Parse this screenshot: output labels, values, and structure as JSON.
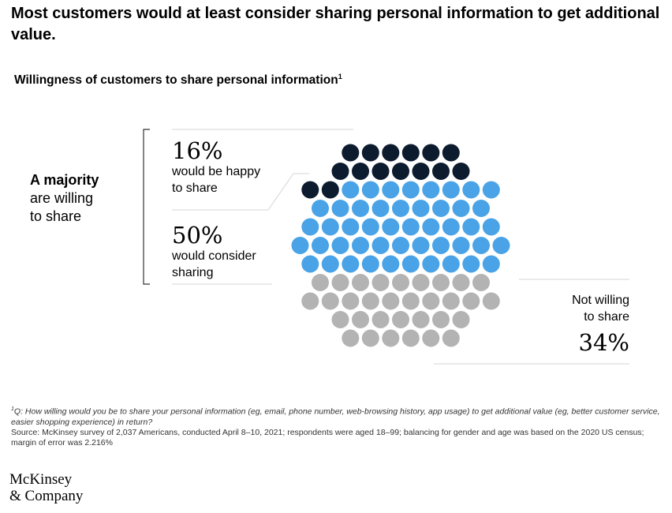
{
  "headline": "Most customers would at least consider sharing personal information to get additional value.",
  "chart_data": {
    "type": "dot-matrix",
    "title": "Willingness of customers to share personal information",
    "title_footnote_marker": "1",
    "bracket_label_bold": "A majority",
    "bracket_label_rest": [
      "are willing",
      "to share"
    ],
    "categories": [
      {
        "key": "happy",
        "percent": 16,
        "value_label": "16%",
        "label_lines": [
          "would be happy",
          "to share"
        ],
        "color": "#0d1b2e"
      },
      {
        "key": "consider",
        "percent": 50,
        "value_label": "50%",
        "label_lines": [
          "would consider",
          "sharing"
        ],
        "color": "#4aa3e6"
      },
      {
        "key": "not",
        "percent": 34,
        "value_label": "34%",
        "label_lines": [
          "Not willing",
          "to share"
        ],
        "color": "#b3b3b3"
      }
    ]
  },
  "footnote": {
    "marker": "1",
    "question": "Q: How willing would you be to share your personal information (eg, email, phone number, web-browsing history, app usage) to get additional value (eg, better customer service, easier shopping experience) in return?",
    "source": "Source: McKinsey survey of 2,037 Americans, conducted April 8–10, 2021; respondents were aged 18–99; balancing for gender and age was based on the 2020 US census; margin of error was 2.216%"
  },
  "logo": {
    "line1": "McKinsey",
    "line2": "& Company"
  }
}
